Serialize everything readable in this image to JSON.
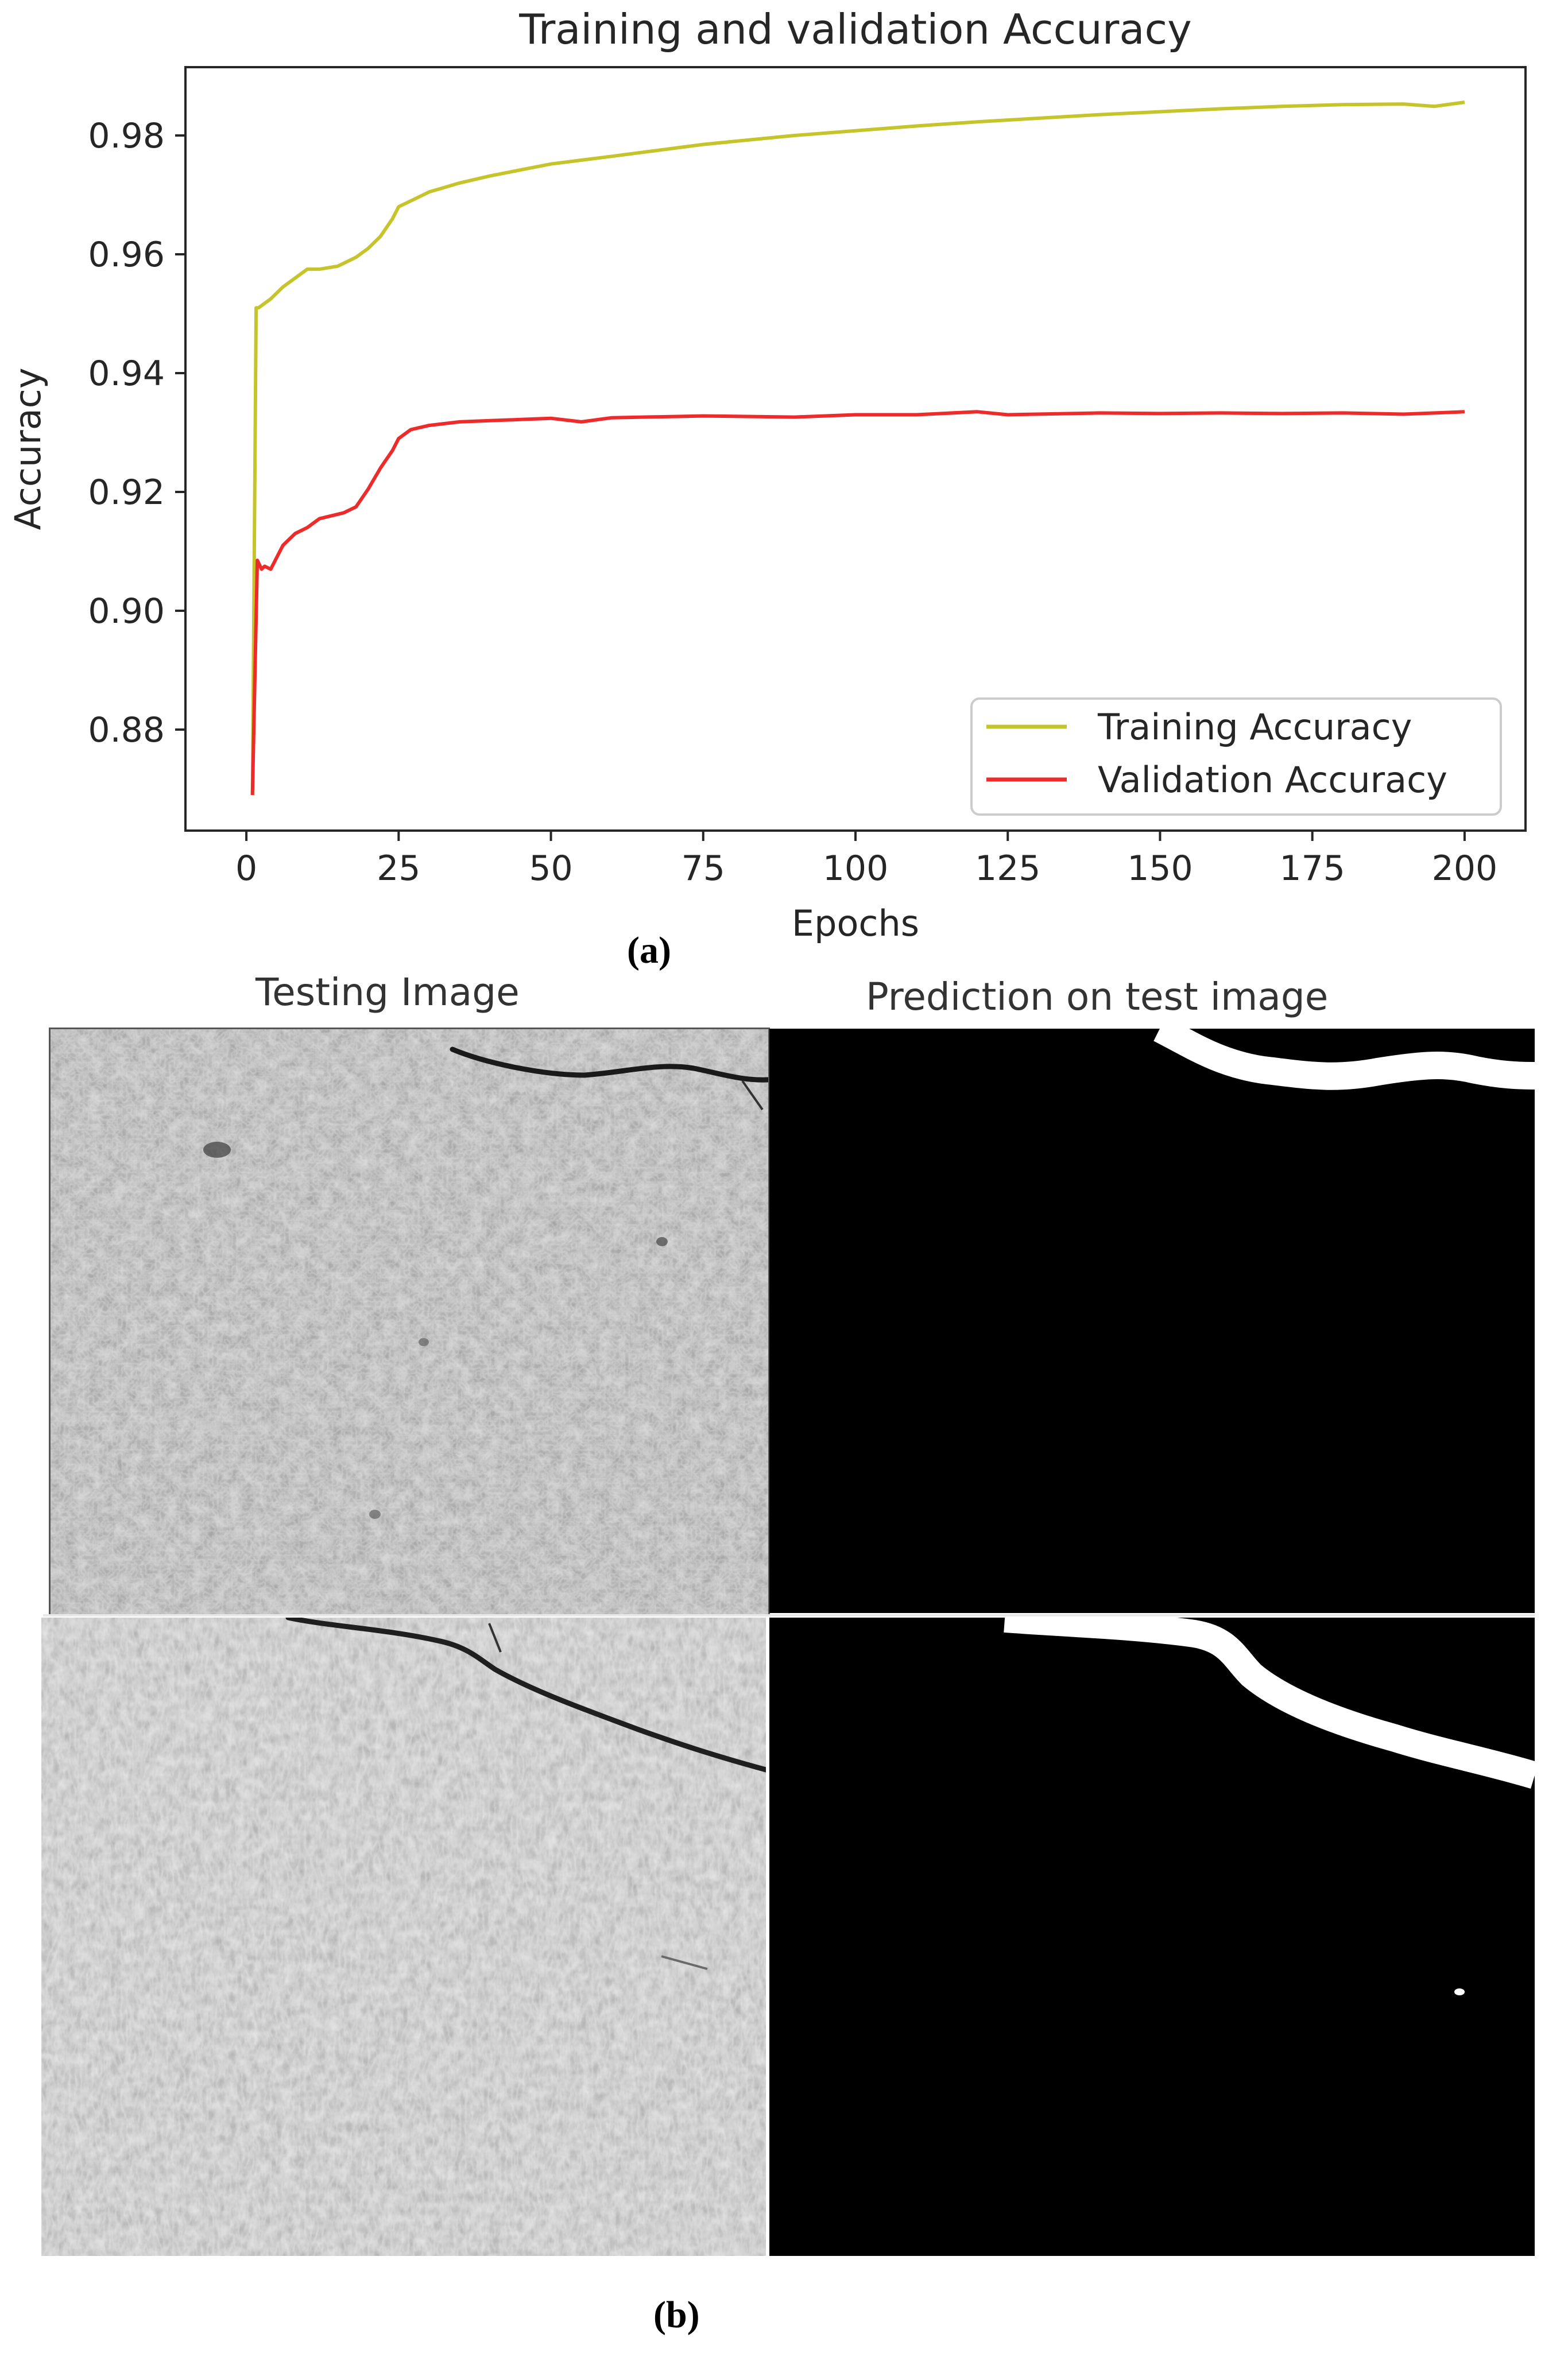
{
  "chart_data": {
    "type": "line",
    "title": "Training and validation Accuracy",
    "xlabel": "Epochs",
    "ylabel": "Accuracy",
    "xlim": [
      -10,
      210
    ],
    "ylim": [
      0.863,
      0.9915
    ],
    "xticks": [
      0,
      25,
      50,
      75,
      100,
      125,
      150,
      175,
      200
    ],
    "yticks": [
      0.88,
      0.9,
      0.92,
      0.94,
      0.96,
      0.98
    ],
    "ytick_labels": [
      "0.88",
      "0.90",
      "0.92",
      "0.94",
      "0.96",
      "0.98"
    ],
    "grid": false,
    "legend": "bottom-right",
    "series": [
      {
        "name": "Training Accuracy",
        "color": "#c5c52b",
        "x": [
          1,
          1.6,
          2,
          4,
          6,
          8,
          10,
          12,
          15,
          18,
          20,
          22,
          24,
          25,
          27,
          30,
          35,
          40,
          50,
          60,
          75,
          90,
          100,
          110,
          120,
          125,
          140,
          150,
          160,
          170,
          180,
          190,
          195,
          200
        ],
        "y": [
          0.869,
          0.951,
          0.951,
          0.9525,
          0.9545,
          0.956,
          0.9575,
          0.9575,
          0.958,
          0.9595,
          0.961,
          0.963,
          0.966,
          0.968,
          0.969,
          0.9705,
          0.972,
          0.9732,
          0.9752,
          0.9765,
          0.9785,
          0.98,
          0.9808,
          0.9816,
          0.9823,
          0.9826,
          0.9835,
          0.984,
          0.9845,
          0.9849,
          0.9852,
          0.9853,
          0.9849,
          0.9856
        ]
      },
      {
        "name": "Validation Accuracy",
        "color": "#ee2b2b",
        "x": [
          1,
          1.8,
          2.5,
          3,
          4,
          5,
          6,
          8,
          10,
          12,
          14,
          16,
          18,
          20,
          22,
          24,
          25,
          27,
          30,
          35,
          40,
          45,
          50,
          55,
          60,
          75,
          90,
          100,
          110,
          120,
          125,
          140,
          150,
          160,
          170,
          180,
          190,
          200
        ],
        "y": [
          0.869,
          0.9085,
          0.907,
          0.9075,
          0.907,
          0.909,
          0.911,
          0.913,
          0.914,
          0.9155,
          0.916,
          0.9165,
          0.9175,
          0.9205,
          0.924,
          0.927,
          0.929,
          0.9305,
          0.9312,
          0.9318,
          0.932,
          0.9322,
          0.9324,
          0.9318,
          0.9325,
          0.9328,
          0.9326,
          0.933,
          0.933,
          0.9335,
          0.933,
          0.9333,
          0.9332,
          0.9333,
          0.9332,
          0.9333,
          0.9331,
          0.9335
        ]
      }
    ]
  },
  "captions": {
    "a": "(a)",
    "b": "(b)"
  },
  "panels": {
    "left_title": "Testing Image",
    "right_title": "Prediction on test image"
  }
}
